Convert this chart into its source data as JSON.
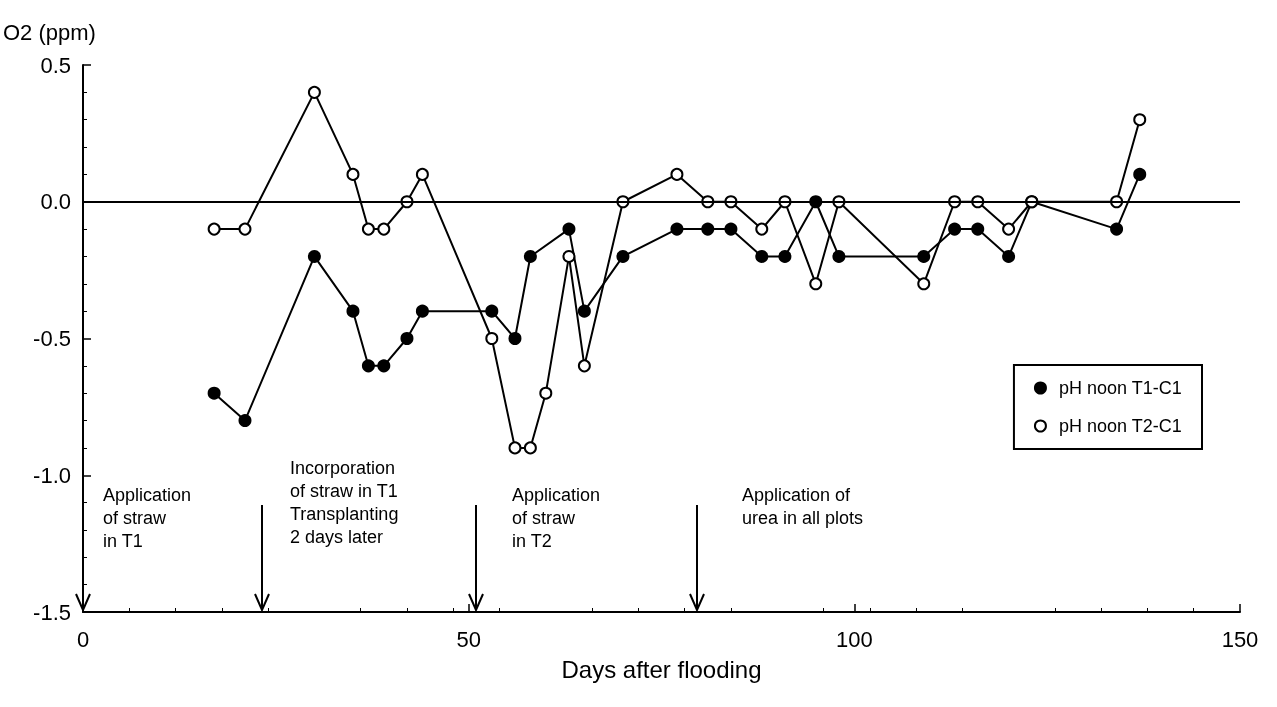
{
  "chart_data": {
    "type": "line",
    "ylabel": "O2 (ppm)",
    "xlabel": "Days after flooding",
    "xlim": [
      0,
      150
    ],
    "xticks": [
      0,
      50,
      100,
      150
    ],
    "ylim": [
      -1.5,
      0.5
    ],
    "yticks": [
      {
        "value": -1.5,
        "label": "-1.5"
      },
      {
        "value": -1,
        "label": "-1.0"
      },
      {
        "value": -0.5,
        "label": "-0.5"
      },
      {
        "value": 0,
        "label": "0.0"
      },
      0.5
    ],
    "x": [
      17,
      21,
      30,
      35,
      37,
      39,
      42,
      44,
      53,
      56,
      58,
      60,
      63,
      65,
      70,
      77,
      81,
      84,
      88,
      91,
      95,
      98,
      109,
      113,
      116,
      120,
      123,
      134,
      137
    ],
    "series": [
      {
        "name": "pH noon T1-C1",
        "color": "#000000",
        "values": [
          -0.7,
          -0.8,
          -0.2,
          -0.4,
          -0.6,
          -0.6,
          -0.5,
          -0.4,
          -0.4,
          -0.5,
          -0.2,
          null,
          -0.1,
          -0.4,
          -0.2,
          -0.1,
          -0.1,
          -0.1,
          -0.2,
          -0.2,
          0,
          -0.2,
          -0.2,
          -0.1,
          -0.1,
          -0.2,
          0,
          -0.1,
          0.1
        ]
      },
      {
        "name": "pH noon T2-C1",
        "color": "#000000",
        "values": [
          -0.1,
          -0.1,
          0.4,
          0.1,
          -0.1,
          -0.1,
          0,
          0.1,
          -0.5,
          -0.9,
          -0.9,
          -0.7,
          -0.2,
          -0.6,
          0,
          0.1,
          0,
          0,
          -0.1,
          0,
          -0.3,
          0,
          -0.3,
          0,
          0,
          -0.1,
          0,
          0,
          0.3
        ]
      }
    ],
    "marker": "circle",
    "line_style": "solid",
    "grid": false,
    "legend": "right",
    "ref_lines": [
      {
        "axis": "y",
        "value": 0,
        "color": "#000000"
      }
    ],
    "annotations": [
      "Application\nof straw\nin T1",
      "Incorporation\nof straw in T1\nTransplanting\n2 days later",
      "Application\nof straw\nin T2",
      "Application of\nurea in all plots"
    ]
  }
}
